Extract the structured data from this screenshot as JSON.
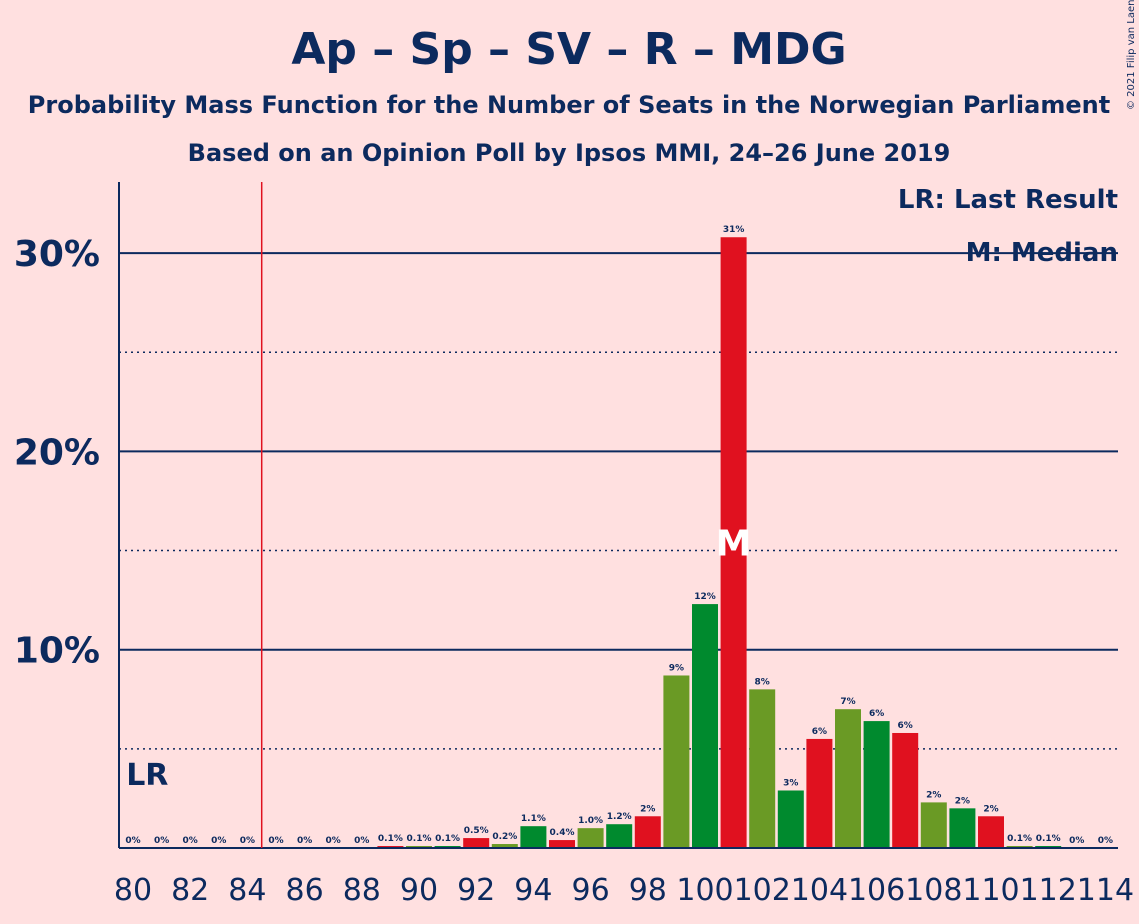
{
  "chart_data": {
    "type": "bar",
    "title": "Ap – Sp – SV – R – MDG",
    "subtitle1": "Probability Mass Function for the Number of Seats in the Norwegian Parliament",
    "subtitle2": "Based on an Opinion Poll by Ipsos MMI, 24–26 June 2019",
    "copyright": "© 2021 Filip van Laenen",
    "legend": {
      "lr": "LR: Last Result",
      "m": "M: Median",
      "placement": "top-right"
    },
    "last_result": {
      "seat": 85,
      "label": "LR"
    },
    "median": {
      "seat": 101,
      "label": "M"
    },
    "y_ticks": [
      {
        "value": 10,
        "label": "10%"
      },
      {
        "value": 20,
        "label": "20%"
      },
      {
        "value": 30,
        "label": "30%"
      }
    ],
    "x_tick_labels": [
      "80",
      "82",
      "84",
      "86",
      "88",
      "90",
      "92",
      "94",
      "96",
      "98",
      "100",
      "102",
      "104",
      "106",
      "108",
      "110",
      "112",
      "114"
    ],
    "x": [
      80,
      81,
      82,
      83,
      84,
      85,
      86,
      87,
      88,
      89,
      90,
      91,
      92,
      93,
      94,
      95,
      96,
      97,
      98,
      99,
      100,
      101,
      102,
      103,
      104,
      105,
      106,
      107,
      108,
      109,
      110,
      111,
      112,
      113,
      114
    ],
    "values": [
      0,
      0,
      0,
      0,
      0,
      0,
      0,
      0,
      0,
      0.1,
      0.1,
      0.1,
      0.5,
      0.2,
      1.1,
      0.4,
      1.0,
      1.2,
      1.6,
      8.7,
      12.3,
      30.8,
      8.0,
      2.9,
      5.5,
      7.0,
      6.4,
      5.8,
      2.3,
      2.0,
      1.6,
      0.1,
      0.1,
      0,
      0
    ],
    "value_labels": [
      "0%",
      "0%",
      "0%",
      "0%",
      "0%",
      "0%",
      "0%",
      "0%",
      "0%",
      "0.1%",
      "0.1%",
      "0.1%",
      "0.5%",
      "0.2%",
      "1.1%",
      "0.4%",
      "1.0%",
      "1.2%",
      "2%",
      "9%",
      "12%",
      "31%",
      "8%",
      "3%",
      "6%",
      "7%",
      "6%",
      "6%",
      "2%",
      "2%",
      "2%",
      "0.1%",
      "0.1%",
      "0%",
      "0%"
    ],
    "colors": {
      "red": "#E0111F",
      "olive": "#6A9A25",
      "green": "#008A2E",
      "navy": "#0C2A5E",
      "lr_line": "#E0111F",
      "background": "#FFE0E0"
    },
    "ylim": [
      0,
      33.5
    ],
    "grid": "solid at 10% steps, dotted at 5% offsets"
  }
}
